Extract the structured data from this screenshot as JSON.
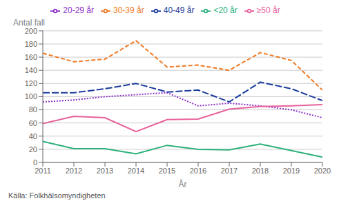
{
  "chart_data": {
    "type": "line",
    "xlabel": "År",
    "ylabel": "Antal fall",
    "annotations": [
      "Källa: Folkhälsomyndigheten"
    ],
    "x": [
      2011,
      2012,
      2013,
      2014,
      2015,
      2016,
      2017,
      2018,
      2019,
      2020
    ],
    "xlim": [
      2011,
      2020
    ],
    "xticks": [
      2011,
      2012,
      2013,
      2014,
      2015,
      2016,
      2017,
      2018,
      2019,
      2020
    ],
    "ylim": [
      0,
      200
    ],
    "yticks": [
      0,
      20,
      40,
      60,
      80,
      100,
      120,
      140,
      160,
      180,
      200
    ],
    "grid": true,
    "legend": "top",
    "series": [
      {
        "name": "<20 år",
        "color": "#2ab07a",
        "line_style": "solid",
        "values": [
          32,
          21,
          21,
          13,
          26,
          20,
          19,
          28,
          18,
          8
        ]
      },
      {
        "name": "20-29 år",
        "color": "#8b2fc9",
        "line_style": "dotted",
        "values": [
          92,
          95,
          100,
          103,
          106,
          86,
          90,
          86,
          80,
          68
        ]
      },
      {
        "name": "30-39 år",
        "color": "#f07820",
        "line_style": "dashed",
        "values": [
          166,
          153,
          157,
          185,
          145,
          148,
          140,
          167,
          155,
          110
        ]
      },
      {
        "name": "40-49 år",
        "color": "#1a3a9c",
        "line_style": "longdash",
        "values": [
          106,
          106,
          112,
          120,
          107,
          110,
          92,
          122,
          112,
          94
        ]
      },
      {
        "name": "≥50 år",
        "color": "#e8609a",
        "line_style": "solid",
        "values": [
          59,
          70,
          68,
          47,
          65,
          66,
          81,
          85,
          86,
          88
        ]
      }
    ]
  }
}
